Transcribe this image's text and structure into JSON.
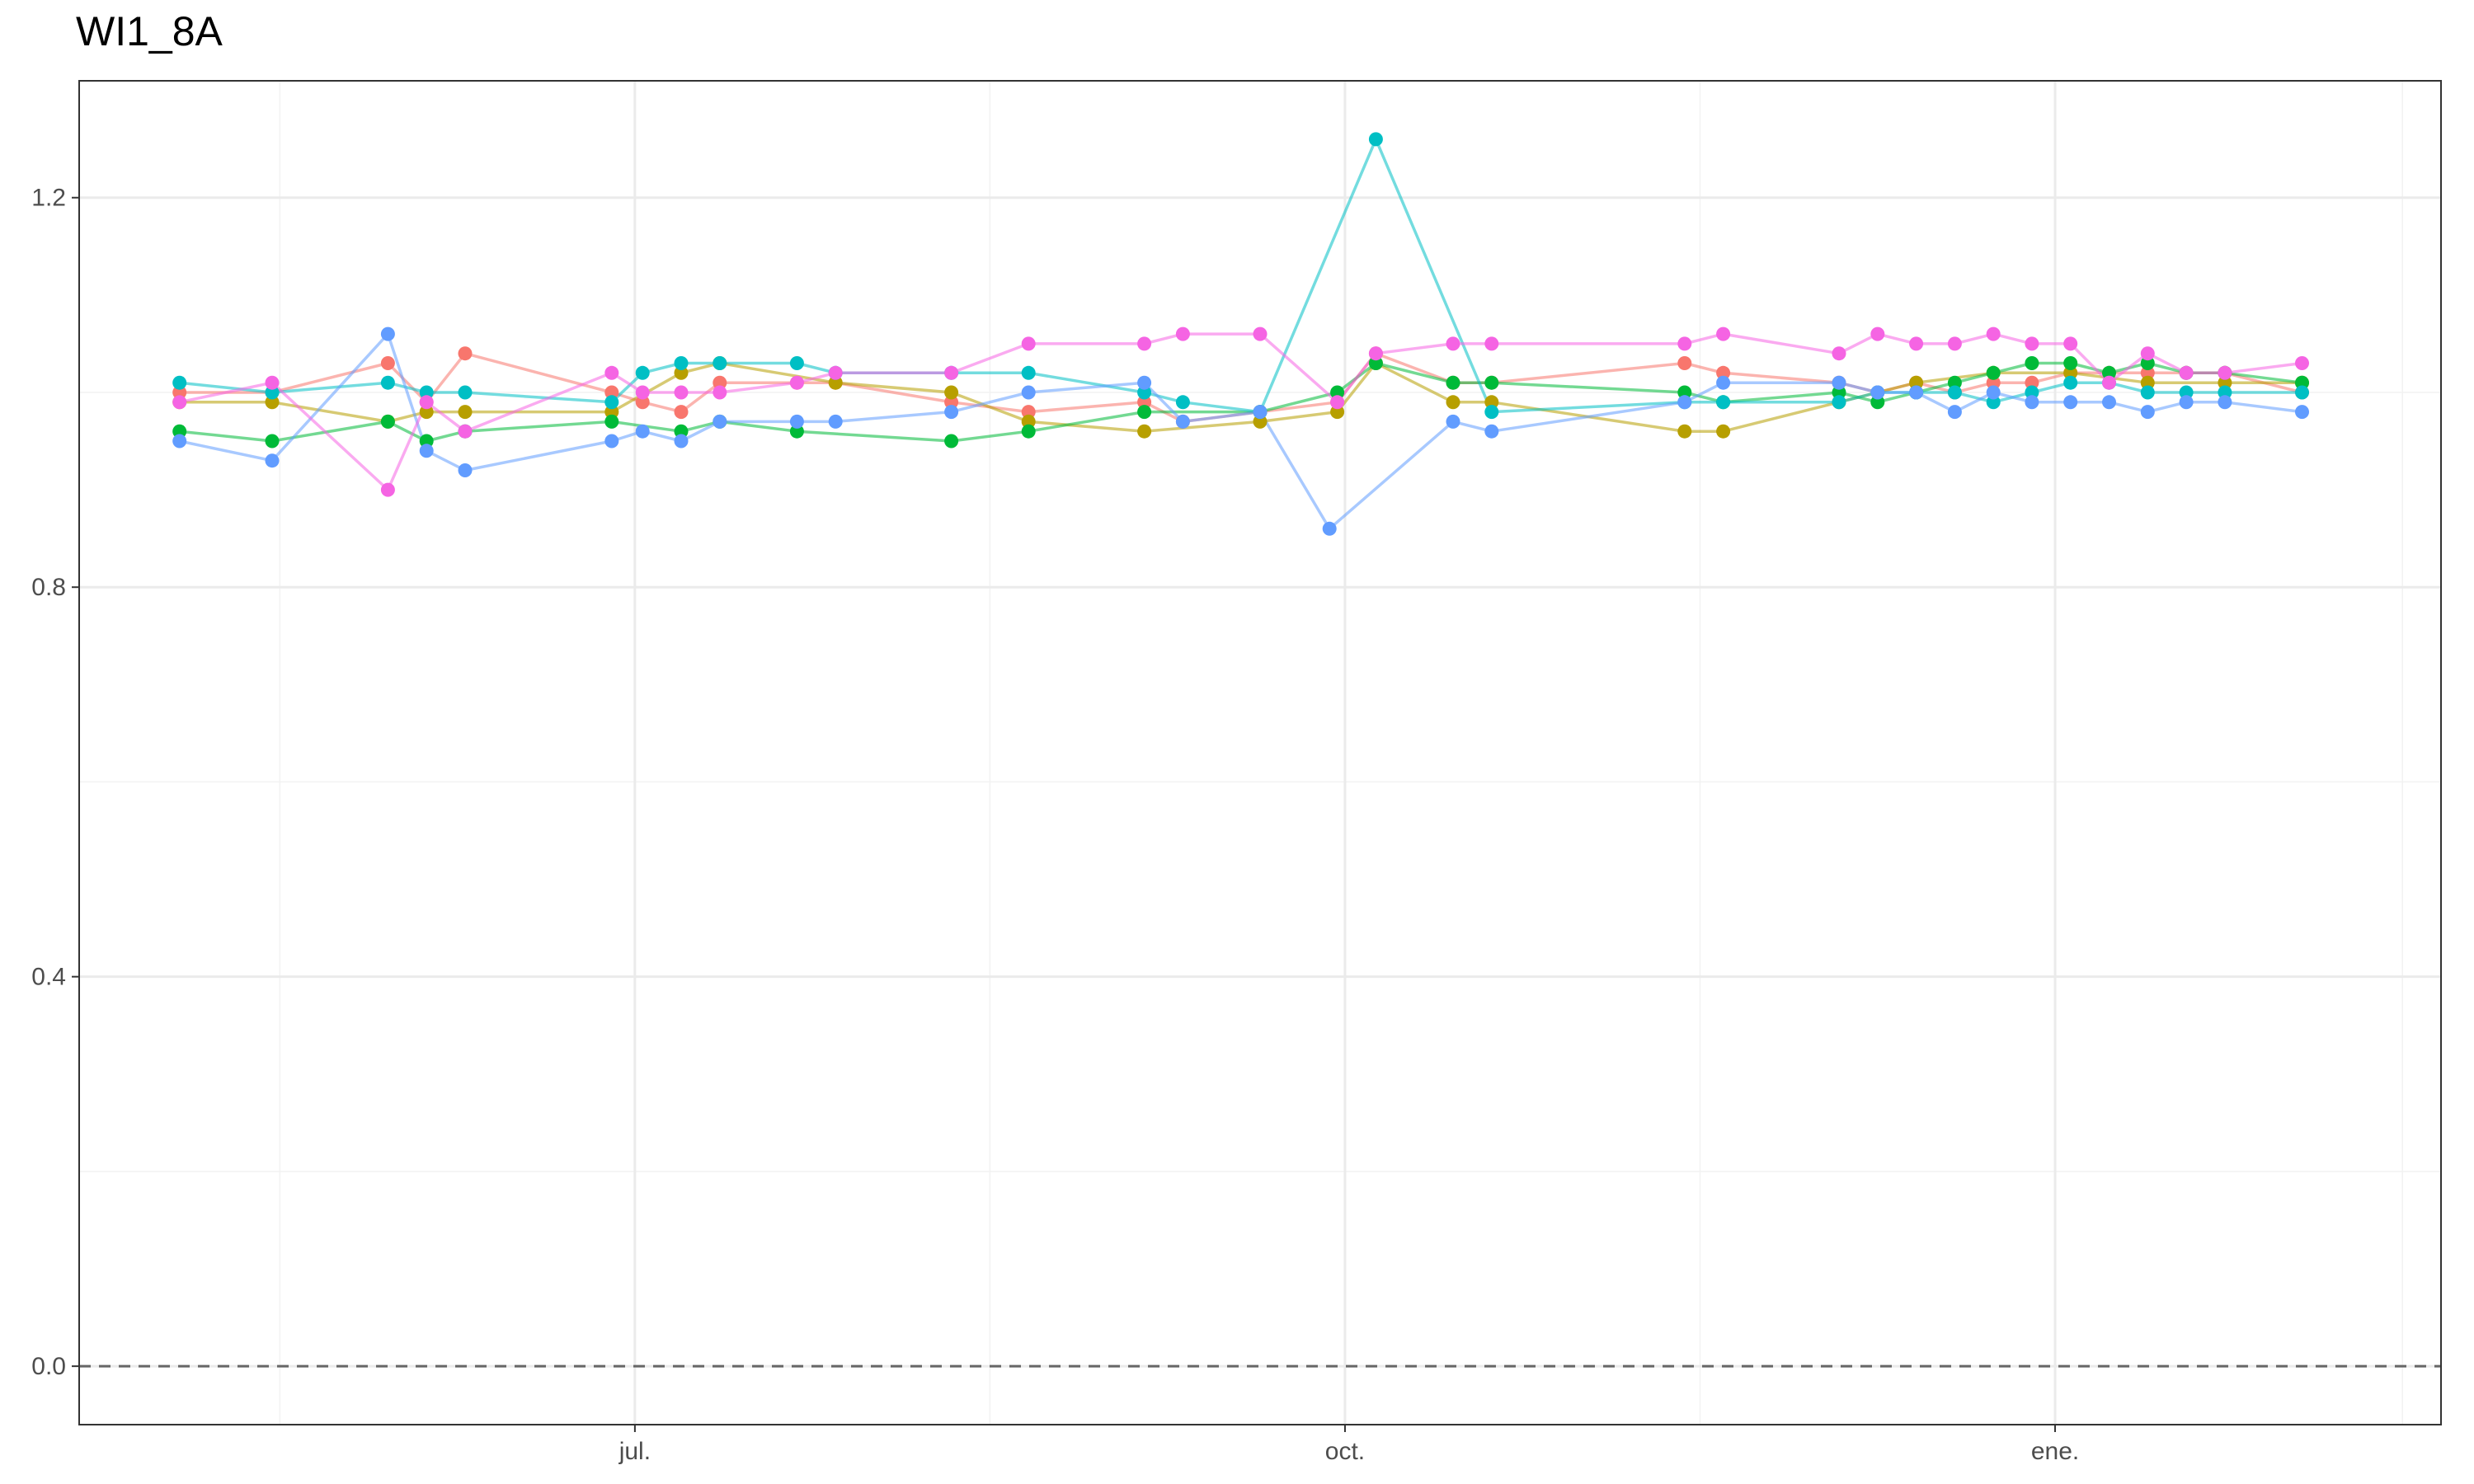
{
  "chart_data": {
    "type": "line",
    "title": "WI1_8A",
    "xlabel": "",
    "ylabel": "",
    "x_range": [
      "2023-04-20",
      "2024-02-20"
    ],
    "ylim": [
      -0.06,
      1.32
    ],
    "y_ticks": [
      0.0,
      0.4,
      0.8,
      1.2
    ],
    "y_tick_labels": [
      "0.0",
      "0.4",
      "0.8",
      "1.2"
    ],
    "x_ticks": [
      "2023-07-01",
      "2023-10-01",
      "2024-01-01"
    ],
    "x_tick_labels": [
      "jul.",
      "oct.",
      "ene."
    ],
    "x_minor_ticks": [
      "2023-05-16",
      "2023-08-16",
      "2023-11-16",
      "2024-02-15"
    ],
    "y_minor_ticks": [
      0.2,
      0.6,
      1.0
    ],
    "reference_line": {
      "y": 0.0,
      "style": "dashed",
      "color": "#666666"
    },
    "grid": true,
    "legend": "none",
    "series": [
      {
        "color": "#F8766D",
        "points": [
          [
            "2023-05-03",
            1.0
          ],
          [
            "2023-05-15",
            1.0
          ],
          [
            "2023-05-30",
            1.03
          ],
          [
            "2023-06-04",
            0.99
          ],
          [
            "2023-06-09",
            1.04
          ],
          [
            "2023-06-28",
            1.0
          ],
          [
            "2023-07-02",
            0.99
          ],
          [
            "2023-07-07",
            0.98
          ],
          [
            "2023-07-12",
            1.01
          ],
          [
            "2023-07-22",
            1.01
          ],
          [
            "2023-07-27",
            1.01
          ],
          [
            "2023-08-11",
            0.99
          ],
          [
            "2023-08-21",
            0.98
          ],
          [
            "2023-09-05",
            0.99
          ],
          [
            "2023-09-10",
            0.97
          ],
          [
            "2023-09-20",
            0.98
          ],
          [
            "2023-09-30",
            0.99
          ],
          [
            "2023-10-05",
            1.04
          ],
          [
            "2023-10-15",
            1.01
          ],
          [
            "2023-10-20",
            1.01
          ],
          [
            "2023-11-14",
            1.03
          ],
          [
            "2023-11-19",
            1.02
          ],
          [
            "2023-12-04",
            1.01
          ],
          [
            "2023-12-09",
            1.0
          ],
          [
            "2023-12-14",
            1.01
          ],
          [
            "2023-12-19",
            1.0
          ],
          [
            "2023-12-24",
            1.01
          ],
          [
            "2023-12-29",
            1.01
          ],
          [
            "2024-01-03",
            1.02
          ],
          [
            "2024-01-08",
            1.02
          ],
          [
            "2024-01-13",
            1.02
          ],
          [
            "2024-01-18",
            1.02
          ],
          [
            "2024-01-23",
            1.02
          ],
          [
            "2024-02-02",
            1.0
          ]
        ]
      },
      {
        "color": "#B79F00",
        "points": [
          [
            "2023-05-03",
            0.99
          ],
          [
            "2023-05-15",
            0.99
          ],
          [
            "2023-05-30",
            0.97
          ],
          [
            "2023-06-04",
            0.98
          ],
          [
            "2023-06-09",
            0.98
          ],
          [
            "2023-06-28",
            0.98
          ],
          [
            "2023-07-07",
            1.02
          ],
          [
            "2023-07-12",
            1.03
          ],
          [
            "2023-07-27",
            1.01
          ],
          [
            "2023-08-11",
            1.0
          ],
          [
            "2023-08-21",
            0.97
          ],
          [
            "2023-09-05",
            0.96
          ],
          [
            "2023-09-20",
            0.97
          ],
          [
            "2023-09-30",
            0.98
          ],
          [
            "2023-10-05",
            1.03
          ],
          [
            "2023-10-15",
            0.99
          ],
          [
            "2023-10-20",
            0.99
          ],
          [
            "2023-11-14",
            0.96
          ],
          [
            "2023-11-19",
            0.96
          ],
          [
            "2023-12-04",
            0.99
          ],
          [
            "2023-12-14",
            1.01
          ],
          [
            "2023-12-24",
            1.02
          ],
          [
            "2024-01-03",
            1.02
          ],
          [
            "2024-01-13",
            1.01
          ],
          [
            "2024-01-23",
            1.01
          ],
          [
            "2024-02-02",
            1.01
          ]
        ]
      },
      {
        "color": "#00BA38",
        "points": [
          [
            "2023-05-03",
            0.96
          ],
          [
            "2023-05-15",
            0.95
          ],
          [
            "2023-05-30",
            0.97
          ],
          [
            "2023-06-04",
            0.95
          ],
          [
            "2023-06-09",
            0.96
          ],
          [
            "2023-06-28",
            0.97
          ],
          [
            "2023-07-07",
            0.96
          ],
          [
            "2023-07-12",
            0.97
          ],
          [
            "2023-07-22",
            0.96
          ],
          [
            "2023-08-11",
            0.95
          ],
          [
            "2023-08-21",
            0.96
          ],
          [
            "2023-09-05",
            0.98
          ],
          [
            "2023-09-20",
            0.98
          ],
          [
            "2023-09-30",
            1.0
          ],
          [
            "2023-10-05",
            1.03
          ],
          [
            "2023-10-15",
            1.01
          ],
          [
            "2023-10-20",
            1.01
          ],
          [
            "2023-11-14",
            1.0
          ],
          [
            "2023-11-19",
            0.99
          ],
          [
            "2023-12-04",
            1.0
          ],
          [
            "2023-12-09",
            0.99
          ],
          [
            "2023-12-14",
            1.0
          ],
          [
            "2023-12-19",
            1.01
          ],
          [
            "2023-12-24",
            1.02
          ],
          [
            "2023-12-29",
            1.03
          ],
          [
            "2024-01-03",
            1.03
          ],
          [
            "2024-01-08",
            1.02
          ],
          [
            "2024-01-13",
            1.03
          ],
          [
            "2024-01-18",
            1.02
          ],
          [
            "2024-01-23",
            1.02
          ],
          [
            "2024-02-02",
            1.01
          ]
        ]
      },
      {
        "color": "#00BFC4",
        "points": [
          [
            "2023-05-03",
            1.01
          ],
          [
            "2023-05-15",
            1.0
          ],
          [
            "2023-05-30",
            1.01
          ],
          [
            "2023-06-04",
            1.0
          ],
          [
            "2023-06-09",
            1.0
          ],
          [
            "2023-06-28",
            0.99
          ],
          [
            "2023-07-02",
            1.02
          ],
          [
            "2023-07-07",
            1.03
          ],
          [
            "2023-07-12",
            1.03
          ],
          [
            "2023-07-22",
            1.03
          ],
          [
            "2023-07-27",
            1.02
          ],
          [
            "2023-08-11",
            1.02
          ],
          [
            "2023-08-21",
            1.02
          ],
          [
            "2023-09-05",
            1.0
          ],
          [
            "2023-09-10",
            0.99
          ],
          [
            "2023-09-20",
            0.98
          ],
          [
            "2023-10-05",
            1.26
          ],
          [
            "2023-10-20",
            0.98
          ],
          [
            "2023-11-14",
            0.99
          ],
          [
            "2023-11-19",
            0.99
          ],
          [
            "2023-12-04",
            0.99
          ],
          [
            "2023-12-09",
            1.0
          ],
          [
            "2023-12-14",
            1.0
          ],
          [
            "2023-12-19",
            1.0
          ],
          [
            "2023-12-24",
            0.99
          ],
          [
            "2023-12-29",
            1.0
          ],
          [
            "2024-01-03",
            1.01
          ],
          [
            "2024-01-08",
            1.01
          ],
          [
            "2024-01-13",
            1.0
          ],
          [
            "2024-01-18",
            1.0
          ],
          [
            "2024-01-23",
            1.0
          ],
          [
            "2024-02-02",
            1.0
          ]
        ]
      },
      {
        "color": "#619CFF",
        "points": [
          [
            "2023-05-03",
            0.95
          ],
          [
            "2023-05-15",
            0.93
          ],
          [
            "2023-05-30",
            1.06
          ],
          [
            "2023-06-04",
            0.94
          ],
          [
            "2023-06-09",
            0.92
          ],
          [
            "2023-06-28",
            0.95
          ],
          [
            "2023-07-02",
            0.96
          ],
          [
            "2023-07-07",
            0.95
          ],
          [
            "2023-07-12",
            0.97
          ],
          [
            "2023-07-22",
            0.97
          ],
          [
            "2023-07-27",
            0.97
          ],
          [
            "2023-08-11",
            0.98
          ],
          [
            "2023-08-21",
            1.0
          ],
          [
            "2023-09-05",
            1.01
          ],
          [
            "2023-09-10",
            0.97
          ],
          [
            "2023-09-20",
            0.98
          ],
          [
            "2023-09-29",
            0.86
          ],
          [
            "2023-10-15",
            0.97
          ],
          [
            "2023-10-20",
            0.96
          ],
          [
            "2023-11-14",
            0.99
          ],
          [
            "2023-11-19",
            1.01
          ],
          [
            "2023-12-04",
            1.01
          ],
          [
            "2023-12-09",
            1.0
          ],
          [
            "2023-12-14",
            1.0
          ],
          [
            "2023-12-19",
            0.98
          ],
          [
            "2023-12-24",
            1.0
          ],
          [
            "2023-12-29",
            0.99
          ],
          [
            "2024-01-03",
            0.99
          ],
          [
            "2024-01-08",
            0.99
          ],
          [
            "2024-01-13",
            0.98
          ],
          [
            "2024-01-18",
            0.99
          ],
          [
            "2024-01-23",
            0.99
          ],
          [
            "2024-02-02",
            0.98
          ]
        ]
      },
      {
        "color": "#F564E3",
        "points": [
          [
            "2023-05-03",
            0.99
          ],
          [
            "2023-05-15",
            1.01
          ],
          [
            "2023-05-30",
            0.9
          ],
          [
            "2023-06-04",
            0.99
          ],
          [
            "2023-06-09",
            0.96
          ],
          [
            "2023-06-28",
            1.02
          ],
          [
            "2023-07-02",
            1.0
          ],
          [
            "2023-07-07",
            1.0
          ],
          [
            "2023-07-12",
            1.0
          ],
          [
            "2023-07-22",
            1.01
          ],
          [
            "2023-07-27",
            1.02
          ],
          [
            "2023-08-11",
            1.02
          ],
          [
            "2023-08-21",
            1.05
          ],
          [
            "2023-09-05",
            1.05
          ],
          [
            "2023-09-10",
            1.06
          ],
          [
            "2023-09-20",
            1.06
          ],
          [
            "2023-09-30",
            0.99
          ],
          [
            "2023-10-05",
            1.04
          ],
          [
            "2023-10-15",
            1.05
          ],
          [
            "2023-10-20",
            1.05
          ],
          [
            "2023-11-14",
            1.05
          ],
          [
            "2023-11-19",
            1.06
          ],
          [
            "2023-12-04",
            1.04
          ],
          [
            "2023-12-09",
            1.06
          ],
          [
            "2023-12-14",
            1.05
          ],
          [
            "2023-12-19",
            1.05
          ],
          [
            "2023-12-24",
            1.06
          ],
          [
            "2023-12-29",
            1.05
          ],
          [
            "2024-01-03",
            1.05
          ],
          [
            "2024-01-08",
            1.01
          ],
          [
            "2024-01-13",
            1.04
          ],
          [
            "2024-01-18",
            1.02
          ],
          [
            "2024-01-23",
            1.02
          ],
          [
            "2024-02-02",
            1.03
          ]
        ]
      }
    ]
  }
}
